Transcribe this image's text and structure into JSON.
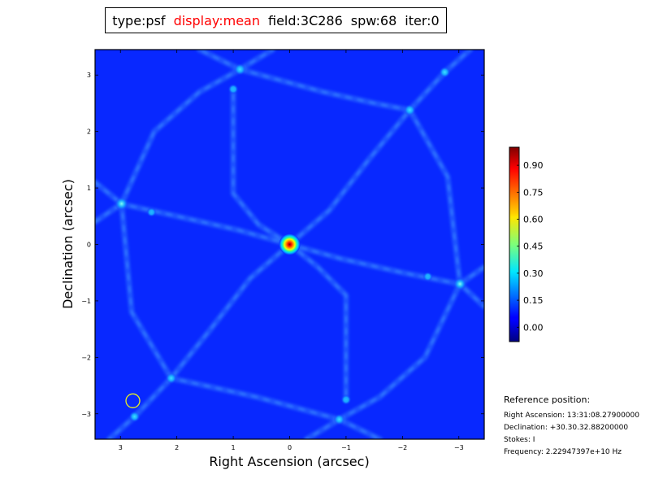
{
  "title": {
    "type": "type:psf",
    "display": "display:mean",
    "display_color": "#ff0000",
    "field": "field:3C286",
    "spw": "spw:68",
    "iter": "iter:0"
  },
  "reference": {
    "heading": "Reference position:",
    "ra": "Right Ascension: 13:31:08.27900000",
    "dec": "Declination: +30.30.32.88200000",
    "stokes": "Stokes: I",
    "frequency": "Frequency: 2.22947397e+10 Hz"
  },
  "chart_data": {
    "type": "heatmap",
    "colormap": "jet",
    "background_color": "#0828ff",
    "xlabel": "Right Ascension (arcsec)",
    "ylabel": "Declination (arcsec)",
    "xlim": [
      3.45,
      -3.45
    ],
    "ylim": [
      -3.45,
      3.45
    ],
    "xticks": [
      3,
      2,
      1,
      0,
      -1,
      -2,
      -3
    ],
    "yticks": [
      3,
      2,
      1,
      0,
      -1,
      -2,
      -3
    ],
    "colorbar": {
      "range": [
        -0.08,
        1.0
      ],
      "ticks": [
        0.9,
        0.75,
        0.6,
        0.45,
        0.3,
        0.15,
        0.0
      ],
      "tick_labels": [
        "0.90",
        "0.75",
        "0.60",
        "0.45",
        "0.30",
        "0.15",
        "0.00"
      ]
    },
    "peaks": [
      {
        "x": 0.0,
        "y": 0.0,
        "value": 1.0
      },
      {
        "x": 2.98,
        "y": 0.72,
        "value": 0.32
      },
      {
        "x": -3.02,
        "y": -0.7,
        "value": 0.3
      },
      {
        "x": 0.88,
        "y": 3.1,
        "value": 0.25
      },
      {
        "x": -2.13,
        "y": 2.38,
        "value": 0.24
      },
      {
        "x": 2.1,
        "y": -2.37,
        "value": 0.22
      },
      {
        "x": -0.88,
        "y": -3.1,
        "value": 0.22
      },
      {
        "x": -2.75,
        "y": 3.05,
        "value": 0.22
      },
      {
        "x": 2.75,
        "y": -3.05,
        "value": 0.22
      },
      {
        "x": 1.0,
        "y": 2.75,
        "value": 0.18
      },
      {
        "x": -1.0,
        "y": -2.75,
        "value": 0.18
      },
      {
        "x": 2.45,
        "y": 0.57,
        "value": 0.15
      },
      {
        "x": -2.45,
        "y": -0.57,
        "value": 0.15
      }
    ],
    "marker": {
      "x": 2.78,
      "y": -2.77,
      "shape": "circle",
      "color": "#e8f020"
    }
  }
}
